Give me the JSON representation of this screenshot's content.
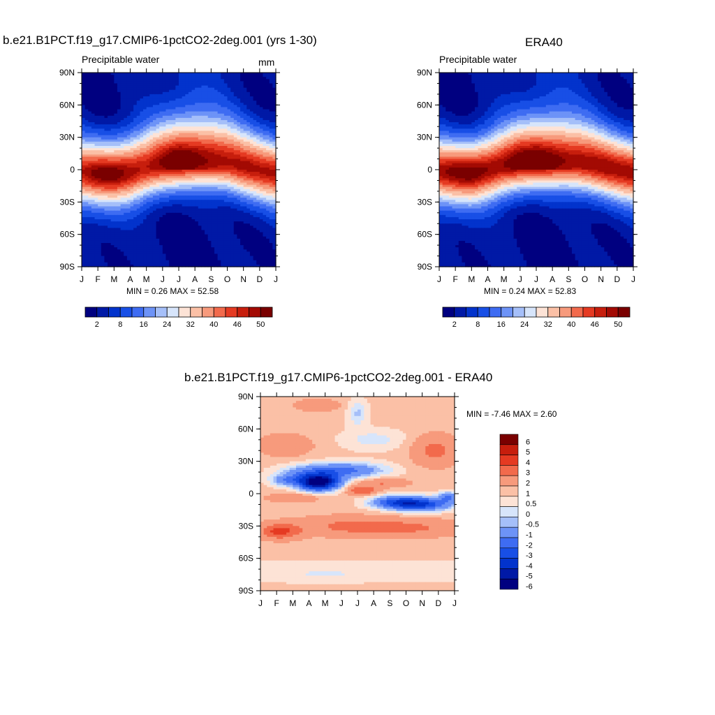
{
  "colors": {
    "abs_palette": [
      "#000080",
      "#0019a6",
      "#0233cc",
      "#184fe6",
      "#3e6cf2",
      "#6d93f7",
      "#a5bff9",
      "#d7e5fb",
      "#fde3d6",
      "#fbc0a6",
      "#f79a7c",
      "#f26a4c",
      "#e53a22",
      "#c71e0d",
      "#a30a03",
      "#7a0000"
    ],
    "diff_palette": [
      "#000080",
      "#0019a6",
      "#0233cc",
      "#184fe6",
      "#3e6cf2",
      "#6d93f7",
      "#a5bff9",
      "#d7e5fb",
      "#fde3d6",
      "#fbc0a6",
      "#f79a7c",
      "#f26a4c",
      "#e53a22",
      "#c71e0d",
      "#7a0000"
    ]
  },
  "panels": {
    "model": {
      "title": "b.e21.B1PCT.f19_g17.CMIP6-1pctCO2-2deg.001 (yrs 1-30)",
      "left_label": "Precipitable water",
      "right_label": "mm",
      "min_label": "MIN =",
      "min_value": "0.26",
      "max_label": "MAX =",
      "max_value": "52.58"
    },
    "obs": {
      "title": "ERA40",
      "left_label": "Precipitable water",
      "min_label": "MIN =",
      "min_value": "0.24",
      "max_label": "MAX =",
      "max_value": "52.83"
    },
    "diff": {
      "title": "b.e21.B1PCT.f19_g17.CMIP6-1pctCO2-2deg.001 - ERA40",
      "min_label": "MIN =",
      "min_value": "-7.46",
      "max_label": "MAX =",
      "max_value": "2.60"
    }
  },
  "chart_data": [
    {
      "type": "heatmap",
      "title": "b.e21.B1PCT.f19_g17.CMIP6-1pctCO2-2deg.001 (yrs 1-30)",
      "field": "Precipitable water",
      "units": "mm",
      "x_ticks": [
        "J",
        "F",
        "M",
        "A",
        "M",
        "J",
        "J",
        "A",
        "S",
        "O",
        "N",
        "D",
        "J"
      ],
      "y_ticks": [
        "90N",
        "60N",
        "30N",
        "0",
        "30S",
        "60S",
        "90S"
      ],
      "ylim": [
        -90,
        90
      ],
      "colorbar_labels": [
        "2",
        "8",
        "16",
        "24",
        "32",
        "40",
        "46",
        "50"
      ],
      "min": 0.26,
      "max": 52.58,
      "itcz_lat_by_month": [
        -3,
        -4,
        -4,
        -2,
        2,
        6,
        9,
        10,
        9,
        7,
        3,
        0,
        -3
      ],
      "peak_by_month": [
        48,
        50,
        51,
        50,
        49,
        50,
        52,
        52,
        51,
        49,
        48,
        47,
        48
      ]
    },
    {
      "type": "heatmap",
      "title": "ERA40",
      "field": "Precipitable water",
      "x_ticks": [
        "J",
        "F",
        "M",
        "A",
        "M",
        "J",
        "J",
        "A",
        "S",
        "O",
        "N",
        "D",
        "J"
      ],
      "y_ticks": [
        "90N",
        "60N",
        "30N",
        "0",
        "30S",
        "60S",
        "90S"
      ],
      "ylim": [
        -90,
        90
      ],
      "colorbar_labels": [
        "2",
        "8",
        "16",
        "24",
        "32",
        "40",
        "46",
        "50"
      ],
      "min": 0.24,
      "max": 52.83,
      "itcz_lat_by_month": [
        -2,
        -3,
        -3,
        0,
        4,
        7,
        9,
        9,
        8,
        6,
        3,
        0,
        -2
      ],
      "peak_by_month": [
        49,
        50,
        51,
        51,
        51,
        52,
        52,
        52,
        51,
        50,
        49,
        48,
        49
      ]
    },
    {
      "type": "heatmap",
      "title": "b.e21.B1PCT.f19_g17.CMIP6-1pctCO2-2deg.001 - ERA40",
      "x_ticks": [
        "J",
        "F",
        "M",
        "A",
        "M",
        "J",
        "J",
        "A",
        "S",
        "O",
        "N",
        "D",
        "J"
      ],
      "y_ticks": [
        "90N",
        "60N",
        "30N",
        "0",
        "30S",
        "60S",
        "90S"
      ],
      "ylim": [
        -90,
        90
      ],
      "colorbar_labels": [
        "6",
        "5",
        "4",
        "3",
        "2",
        "1",
        "0.5",
        "0",
        "-0.5",
        "-1",
        "-2",
        "-3",
        "-4",
        "-5",
        "-6"
      ],
      "min": -7.46,
      "max": 2.6,
      "levels": [
        -6,
        -5,
        -4,
        -3,
        -2,
        -1,
        -0.5,
        0,
        0.5,
        1,
        2,
        3,
        4,
        5,
        6
      ]
    }
  ]
}
